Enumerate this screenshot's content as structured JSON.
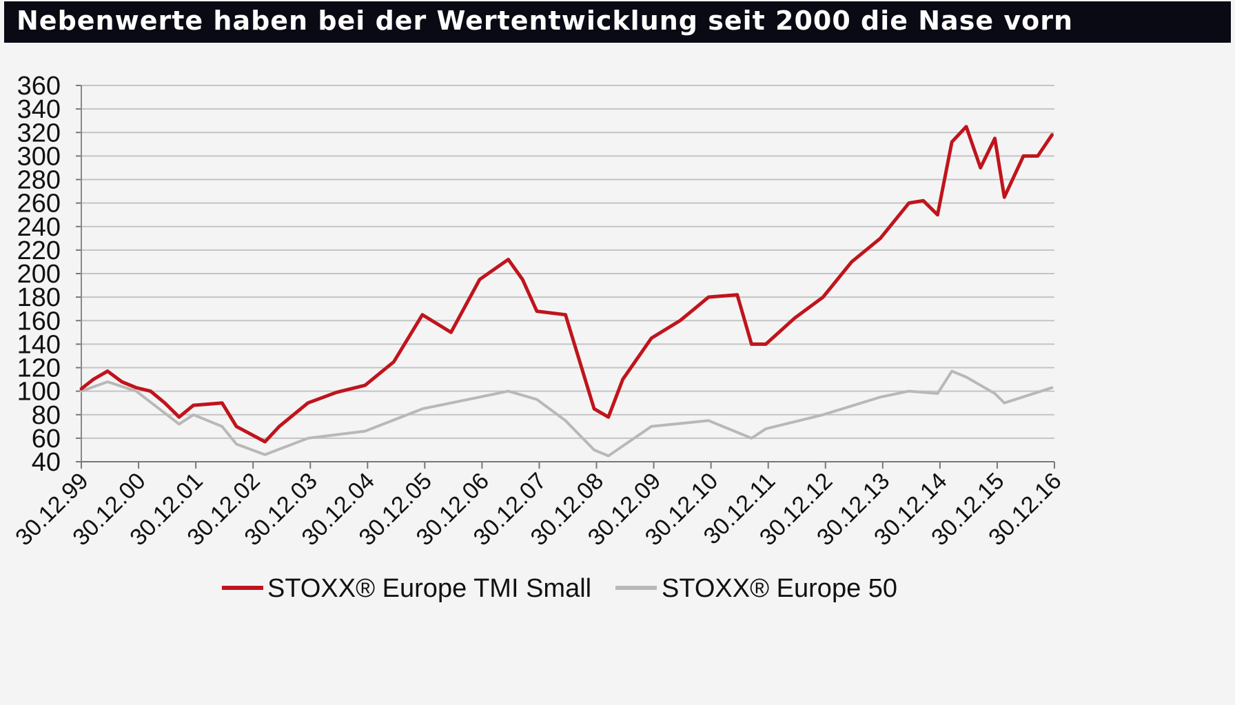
{
  "chart_data": {
    "type": "line",
    "title": "Nebenwerte haben bei der Wertentwicklung seit 2000 die Nase vorn",
    "xlabel": "",
    "ylabel": "",
    "ylim": [
      40,
      360
    ],
    "y_ticks": [
      40,
      60,
      80,
      100,
      120,
      140,
      160,
      180,
      200,
      220,
      240,
      260,
      280,
      300,
      320,
      340,
      360
    ],
    "x_ticks": [
      "30.12.99",
      "30.12.00",
      "30.12.01",
      "30.12.02",
      "30.12.03",
      "30.12.04",
      "30.12.05",
      "30.12.06",
      "30.12.07",
      "30.12.08",
      "30.12.09",
      "30.12.10",
      "30.12.11",
      "30.12.12",
      "30.12.13",
      "30.12.14",
      "30.12.15",
      "30.12.16"
    ],
    "grid": "horizontal",
    "legend_position": "bottom",
    "series": [
      {
        "name": "STOXX® Europe TMI Small",
        "color": "#c0141c",
        "x": [
          "30.12.99",
          "03.2000",
          "06.2000",
          "09.2000",
          "12.2000",
          "03.2001",
          "06.2001",
          "09.2001",
          "12.2001",
          "06.2002",
          "09.2002",
          "03.2003",
          "06.2003",
          "12.2003",
          "06.2004",
          "12.2004",
          "06.2005",
          "12.2005",
          "06.2006",
          "12.2006",
          "06.2007",
          "09.2007",
          "12.2007",
          "06.2008",
          "09.2008",
          "12.2008",
          "03.2009",
          "06.2009",
          "12.2009",
          "06.2010",
          "12.2010",
          "06.2011",
          "09.2011",
          "12.2011",
          "06.2012",
          "12.2012",
          "06.2013",
          "12.2013",
          "06.2014",
          "09.2014",
          "12.2014",
          "03.2015",
          "06.2015",
          "09.2015",
          "12.2015",
          "02.2016",
          "06.2016",
          "09.2016",
          "12.2016"
        ],
        "values": [
          102,
          110,
          117,
          108,
          103,
          100,
          90,
          78,
          88,
          90,
          70,
          57,
          70,
          90,
          99,
          105,
          125,
          165,
          150,
          195,
          212,
          195,
          168,
          165,
          125,
          85,
          78,
          110,
          145,
          160,
          180,
          182,
          140,
          140,
          162,
          180,
          210,
          230,
          260,
          262,
          250,
          312,
          325,
          290,
          315,
          265,
          300,
          300,
          318
        ]
      },
      {
        "name": "STOXX® Europe 50",
        "color": "#b8b8b8",
        "x": [
          "30.12.99",
          "06.2000",
          "12.2000",
          "09.2001",
          "12.2001",
          "06.2002",
          "09.2002",
          "03.2003",
          "12.2003",
          "12.2004",
          "12.2005",
          "12.2006",
          "06.2007",
          "12.2007",
          "06.2008",
          "12.2008",
          "03.2009",
          "12.2009",
          "12.2010",
          "09.2011",
          "12.2011",
          "12.2012",
          "12.2013",
          "06.2014",
          "12.2014",
          "03.2015",
          "06.2015",
          "12.2015",
          "02.2016",
          "12.2016"
        ],
        "values": [
          100,
          108,
          100,
          72,
          80,
          70,
          55,
          46,
          60,
          66,
          85,
          95,
          100,
          93,
          75,
          50,
          45,
          70,
          75,
          60,
          68,
          80,
          95,
          100,
          98,
          117,
          112,
          98,
          90,
          103
        ]
      }
    ]
  }
}
